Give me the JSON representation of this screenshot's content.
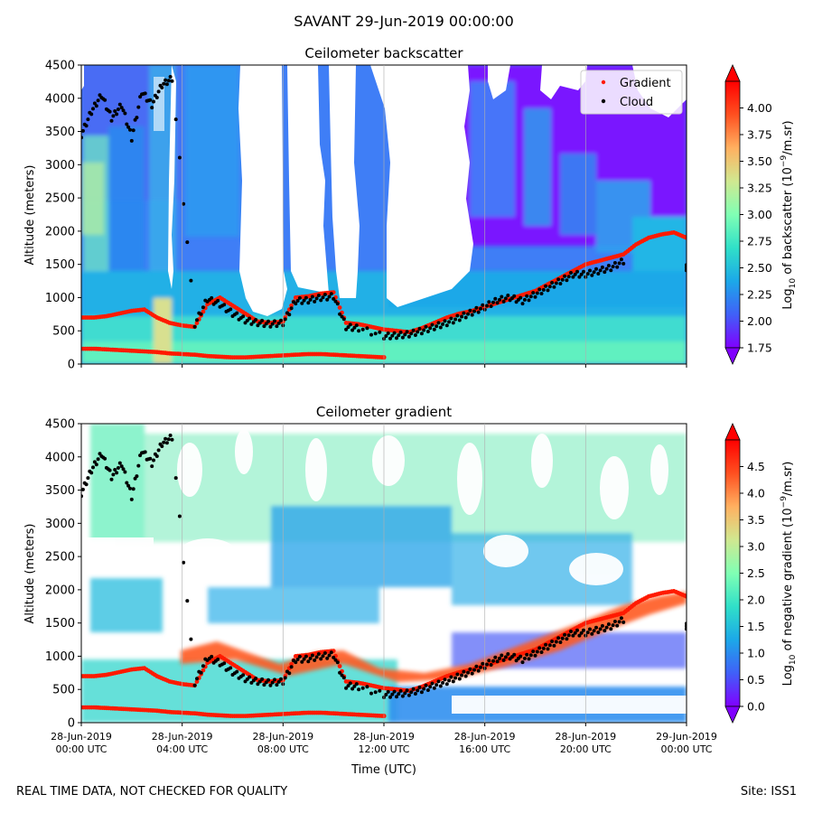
{
  "figure": {
    "suptitle": "SAVANT 29-Jun-2019 00:00:00",
    "footer_left": "REAL TIME DATA, NOT CHECKED FOR QUALITY",
    "footer_right": "Site: ISS1",
    "xlabel": "Time (UTC)"
  },
  "colors": {
    "gradient_marker": "#ff1a00",
    "cloud_marker": "#000000",
    "colormap": [
      "#8000ff",
      "#4060f8",
      "#1ca8e8",
      "#30e0c8",
      "#80ffb4",
      "#d0e890",
      "#ffb060",
      "#ff5020",
      "#ff0000"
    ]
  },
  "chart_data": [
    {
      "type": "heatmap",
      "title": "Ceilometer backscatter",
      "ylabel": "Altitude (meters)",
      "xlim": [
        "28-Jun-2019 00:00 UTC",
        "29-Jun-2019 00:00 UTC"
      ],
      "ylim": [
        0,
        4500
      ],
      "x_ticks": [
        "28-Jun-2019\n00:00 UTC",
        "28-Jun-2019\n04:00 UTC",
        "28-Jun-2019\n08:00 UTC",
        "28-Jun-2019\n12:00 UTC",
        "28-Jun-2019\n16:00 UTC",
        "28-Jun-2019\n20:00 UTC",
        "29-Jun-2019\n00:00 UTC"
      ],
      "y_ticks": [
        0,
        500,
        1000,
        1500,
        2000,
        2500,
        3000,
        3500,
        4000,
        4500
      ],
      "colorbar": {
        "label": "Log10 of backscatter (10^-9/m.sr)",
        "label_main": "Log",
        "label_sub": "10",
        "label_rest": " of backscatter (10",
        "label_sup": "−9",
        "label_end": "/m.sr)",
        "range": [
          1.75,
          4.25
        ],
        "ticks": [
          "1.75",
          "2.00",
          "2.25",
          "2.50",
          "2.75",
          "3.00",
          "3.25",
          "3.50",
          "3.75",
          "4.00"
        ],
        "extend": "both"
      },
      "legend": {
        "placement": "top-right",
        "entries": [
          "Gradient",
          "Cloud"
        ]
      },
      "series": [
        {
          "name": "Gradient",
          "marker": "dot",
          "hours": [
            0,
            0.5,
            1,
            1.5,
            2,
            2.5,
            3,
            3.5,
            4,
            4.5,
            5,
            5.5,
            6,
            6.5,
            7,
            7.5,
            8,
            8.5,
            9,
            9.5,
            10,
            10.5,
            11,
            11.5,
            12,
            12.5,
            13,
            13.5,
            14,
            14.5,
            15,
            15.5,
            16,
            16.5,
            17,
            17.5,
            18,
            18.5,
            19,
            19.5,
            20,
            20.5,
            21,
            21.5,
            22,
            22.5,
            23,
            23.5,
            24
          ],
          "altitude_m": [
            700,
            700,
            720,
            760,
            800,
            820,
            700,
            620,
            580,
            560,
            900,
            1000,
            880,
            760,
            640,
            620,
            640,
            1000,
            1020,
            1060,
            1080,
            620,
            600,
            560,
            520,
            500,
            480,
            540,
            620,
            700,
            760,
            800,
            860,
            920,
            980,
            1040,
            1100,
            1200,
            1300,
            1400,
            1500,
            1550,
            1600,
            1650,
            1800,
            1900,
            1950,
            1980,
            1900
          ]
        },
        {
          "name": "Gradient",
          "marker": "dot",
          "hours": [
            0,
            0.5,
            1,
            1.5,
            2,
            2.5,
            3,
            3.5,
            4,
            4.5,
            5,
            5.5,
            6,
            6.5,
            7,
            7.5,
            8,
            8.5,
            9,
            9.5,
            10,
            10.5,
            11,
            11.5,
            12
          ],
          "altitude_m": [
            230,
            230,
            220,
            210,
            200,
            190,
            180,
            160,
            150,
            140,
            120,
            110,
            100,
            100,
            110,
            120,
            130,
            140,
            150,
            150,
            140,
            130,
            120,
            110,
            100
          ]
        },
        {
          "name": "Cloud",
          "marker": "dot",
          "hours": [
            0,
            0.4,
            0.8,
            1.2,
            1.6,
            2,
            2.4,
            2.8,
            3.2,
            3.6,
            4.5,
            5,
            5.5,
            6,
            6.5,
            7,
            7.5,
            8,
            8.5,
            9,
            9.5,
            10,
            10.5,
            11,
            12,
            12.5,
            13,
            13.5,
            14,
            14.5,
            15,
            15.5,
            16,
            16.5,
            17,
            17.5,
            18,
            18.5,
            19,
            19.5,
            20,
            20.5,
            21,
            21.5,
            24
          ],
          "altitude_m": [
            3450,
            3800,
            4050,
            3700,
            3900,
            3400,
            4100,
            3900,
            4200,
            4300,
            600,
            980,
            900,
            760,
            660,
            620,
            600,
            620,
            950,
            960,
            1000,
            1020,
            560,
            540,
            420,
            430,
            450,
            500,
            560,
            620,
            700,
            780,
            860,
            960,
            1000,
            950,
            1050,
            1150,
            1250,
            1350,
            1350,
            1400,
            1450,
            1550,
            1450
          ]
        }
      ]
    },
    {
      "type": "heatmap",
      "title": "Ceilometer gradient",
      "ylabel": "Altitude (meters)",
      "xlim": [
        "28-Jun-2019 00:00 UTC",
        "29-Jun-2019 00:00 UTC"
      ],
      "ylim": [
        0,
        4500
      ],
      "x_ticks": [
        "28-Jun-2019\n00:00 UTC",
        "28-Jun-2019\n04:00 UTC",
        "28-Jun-2019\n08:00 UTC",
        "28-Jun-2019\n12:00 UTC",
        "28-Jun-2019\n16:00 UTC",
        "28-Jun-2019\n20:00 UTC",
        "29-Jun-2019\n00:00 UTC"
      ],
      "y_ticks": [
        0,
        500,
        1000,
        1500,
        2000,
        2500,
        3000,
        3500,
        4000,
        4500
      ],
      "colorbar": {
        "label": "Log10 of negative gradient (10^-9/m.sr)",
        "label_main": "Log",
        "label_sub": "10",
        "label_rest": " of negative gradient (10",
        "label_sup": "−9",
        "label_end": "/m.sr)",
        "range": [
          0,
          5
        ],
        "ticks": [
          "0.0",
          "0.5",
          "1.0",
          "1.5",
          "2.0",
          "2.5",
          "3.0",
          "3.5",
          "4.0",
          "4.5"
        ],
        "extend": "both"
      },
      "series": [
        {
          "name": "Gradient",
          "marker": "dot",
          "hours": [
            0,
            0.5,
            1,
            1.5,
            2,
            2.5,
            3,
            3.5,
            4,
            4.5,
            5,
            5.5,
            6,
            6.5,
            7,
            7.5,
            8,
            8.5,
            9,
            9.5,
            10,
            10.5,
            11,
            11.5,
            12,
            12.5,
            13,
            13.5,
            14,
            14.5,
            15,
            15.5,
            16,
            16.5,
            17,
            17.5,
            18,
            18.5,
            19,
            19.5,
            20,
            20.5,
            21,
            21.5,
            22,
            22.5,
            23,
            23.5,
            24
          ],
          "altitude_m": [
            700,
            700,
            720,
            760,
            800,
            820,
            700,
            620,
            580,
            560,
            900,
            1000,
            880,
            760,
            640,
            620,
            640,
            1000,
            1020,
            1060,
            1080,
            620,
            600,
            560,
            520,
            500,
            480,
            540,
            620,
            700,
            760,
            800,
            860,
            920,
            980,
            1040,
            1100,
            1200,
            1300,
            1400,
            1500,
            1550,
            1600,
            1650,
            1800,
            1900,
            1950,
            1980,
            1900
          ]
        },
        {
          "name": "Gradient",
          "marker": "dot",
          "hours": [
            0,
            0.5,
            1,
            1.5,
            2,
            2.5,
            3,
            3.5,
            4,
            4.5,
            5,
            5.5,
            6,
            6.5,
            7,
            7.5,
            8,
            8.5,
            9,
            9.5,
            10,
            10.5,
            11,
            11.5,
            12
          ],
          "altitude_m": [
            230,
            230,
            220,
            210,
            200,
            190,
            180,
            160,
            150,
            140,
            120,
            110,
            100,
            100,
            110,
            120,
            130,
            140,
            150,
            150,
            140,
            130,
            120,
            110,
            100
          ]
        },
        {
          "name": "Cloud",
          "marker": "dot",
          "hours": [
            0,
            0.4,
            0.8,
            1.2,
            1.6,
            2,
            2.4,
            2.8,
            3.2,
            3.6,
            4.5,
            5,
            5.5,
            6,
            6.5,
            7,
            7.5,
            8,
            8.5,
            9,
            9.5,
            10,
            10.5,
            11,
            12,
            12.5,
            13,
            13.5,
            14,
            14.5,
            15,
            15.5,
            16,
            16.5,
            17,
            17.5,
            18,
            18.5,
            19,
            19.5,
            20,
            20.5,
            21,
            21.5,
            24
          ],
          "altitude_m": [
            3450,
            3800,
            4050,
            3700,
            3900,
            3400,
            4100,
            3900,
            4200,
            4300,
            600,
            980,
            900,
            760,
            660,
            620,
            600,
            620,
            950,
            960,
            1000,
            1020,
            560,
            540,
            420,
            430,
            450,
            500,
            560,
            620,
            700,
            780,
            860,
            960,
            1000,
            950,
            1050,
            1150,
            1250,
            1350,
            1350,
            1400,
            1450,
            1550,
            1450
          ]
        }
      ]
    }
  ]
}
